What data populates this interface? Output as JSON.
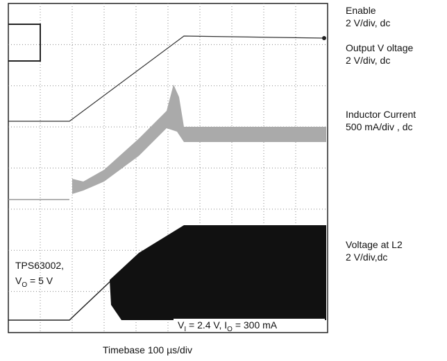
{
  "channels": [
    {
      "name": "Enable",
      "scale": "2 V/div, dc"
    },
    {
      "name": "Output V oltage",
      "scale": "2 V/div, dc"
    },
    {
      "name": "Inductor Current",
      "scale": "500 mA/div , dc"
    },
    {
      "name": "Voltage at L2",
      "scale": "2 V/div,dc"
    }
  ],
  "annotations": {
    "device": "TPS63002,",
    "output": [
      "V",
      "O",
      " = 5 V"
    ],
    "conditions": [
      "V",
      "I",
      " = 2.4 V, I",
      "O",
      " = 300 mA"
    ]
  },
  "timebase": "Timebase 100  µs/div"
}
